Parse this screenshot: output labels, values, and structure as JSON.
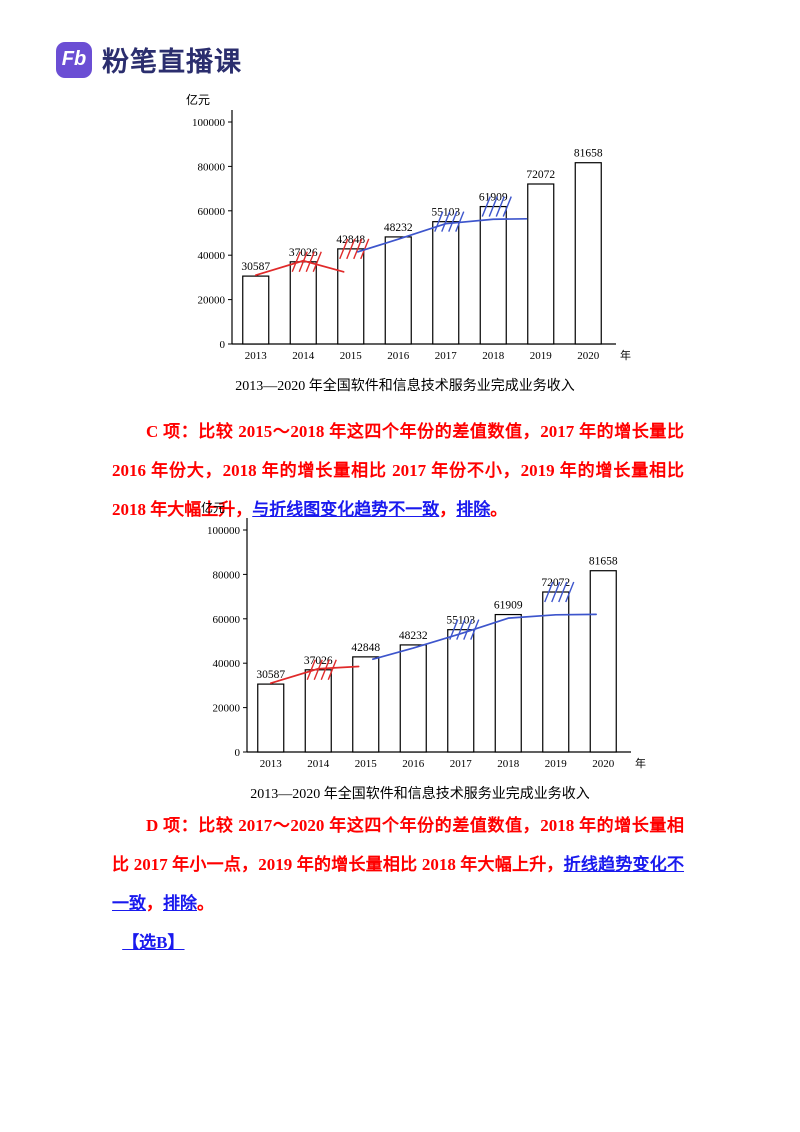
{
  "colors": {
    "annotation_red": "#e02a2a",
    "annotation_blue": "#3d55cc",
    "text_red": "#ff0000",
    "text_blue": "#1a1aee",
    "brand": "#2b2e6e",
    "logo_bg": "#6b4ed4"
  },
  "header": {
    "logo_text": "Fb",
    "brand": "粉笔直播课"
  },
  "chart_data": [
    {
      "type": "bar",
      "title": "2013—2020 年全国软件和信息技术服务业完成业务收入",
      "ylabel": "亿元",
      "x_unit": "年",
      "categories": [
        "2013",
        "2014",
        "2015",
        "2016",
        "2017",
        "2018",
        "2019",
        "2020"
      ],
      "values": [
        30587,
        37026,
        42848,
        48232,
        55103,
        61909,
        72072,
        81658
      ],
      "ylim": [
        0,
        100000
      ],
      "yticks": [
        0,
        20000,
        40000,
        60000,
        80000,
        100000
      ],
      "grid": false,
      "legend": "none",
      "annotations": {
        "red": {
          "hatch_years": [
            "2014",
            "2015"
          ],
          "line": [
            [
              0,
              31000
            ],
            [
              1,
              37500
            ],
            [
              1.85,
              32500
            ]
          ]
        },
        "blue": {
          "hatch_years": [
            "2017",
            "2018"
          ],
          "line": [
            [
              2.15,
              41500
            ],
            [
              3,
              47200
            ],
            [
              4,
              54200
            ],
            [
              5,
              56200
            ],
            [
              5.7,
              56400
            ]
          ]
        }
      }
    },
    {
      "type": "bar",
      "title": "2013—2020 年全国软件和信息技术服务业完成业务收入",
      "ylabel": "亿元",
      "x_unit": "年",
      "categories": [
        "2013",
        "2014",
        "2015",
        "2016",
        "2017",
        "2018",
        "2019",
        "2020"
      ],
      "values": [
        30587,
        37026,
        42848,
        48232,
        55103,
        61909,
        72072,
        81658
      ],
      "ylim": [
        0,
        100000
      ],
      "yticks": [
        0,
        20000,
        40000,
        60000,
        80000,
        100000
      ],
      "grid": false,
      "legend": "none",
      "annotations": {
        "red": {
          "hatch_years": [
            "2014"
          ],
          "line": [
            [
              0,
              31000
            ],
            [
              1,
              37500
            ],
            [
              1.85,
              38500
            ]
          ]
        },
        "blue": {
          "hatch_years": [
            "2017",
            "2019"
          ],
          "line": [
            [
              2.15,
              41800
            ],
            [
              3,
              46800
            ],
            [
              4,
              53300
            ],
            [
              5,
              60300
            ],
            [
              6,
              61800
            ],
            [
              6.85,
              62000
            ]
          ]
        }
      }
    }
  ],
  "analysis": [
    {
      "segments": [
        {
          "text": "C 项：比较 2015～2018 年这四个年份的差值数值，2017 年的增长量比 2016 年份大，2018 年的增长量相比 2017 年份不小，2019 年的增长量相比 2018 年大幅上升，",
          "style": "red"
        },
        {
          "text": "与折线图变化趋势不一致",
          "style": "blue"
        },
        {
          "text": "，",
          "style": "red"
        },
        {
          "text": "排除",
          "style": "blue"
        },
        {
          "text": "。",
          "style": "red"
        }
      ]
    },
    {
      "segments": [
        {
          "text": "D 项：比较 2017～2020 年这四个年份的差值数值，2018 年的增长量相比 2017 年小一点，2019 年的增长量相比 2018 年大幅上升，",
          "style": "red"
        },
        {
          "text": "折线趋势变化不一致",
          "style": "blue"
        },
        {
          "text": "，",
          "style": "red"
        },
        {
          "text": "排除",
          "style": "blue"
        },
        {
          "text": "。",
          "style": "red"
        }
      ]
    },
    {
      "segments": [
        {
          "text": "【选B】",
          "style": "blue"
        }
      ]
    }
  ]
}
